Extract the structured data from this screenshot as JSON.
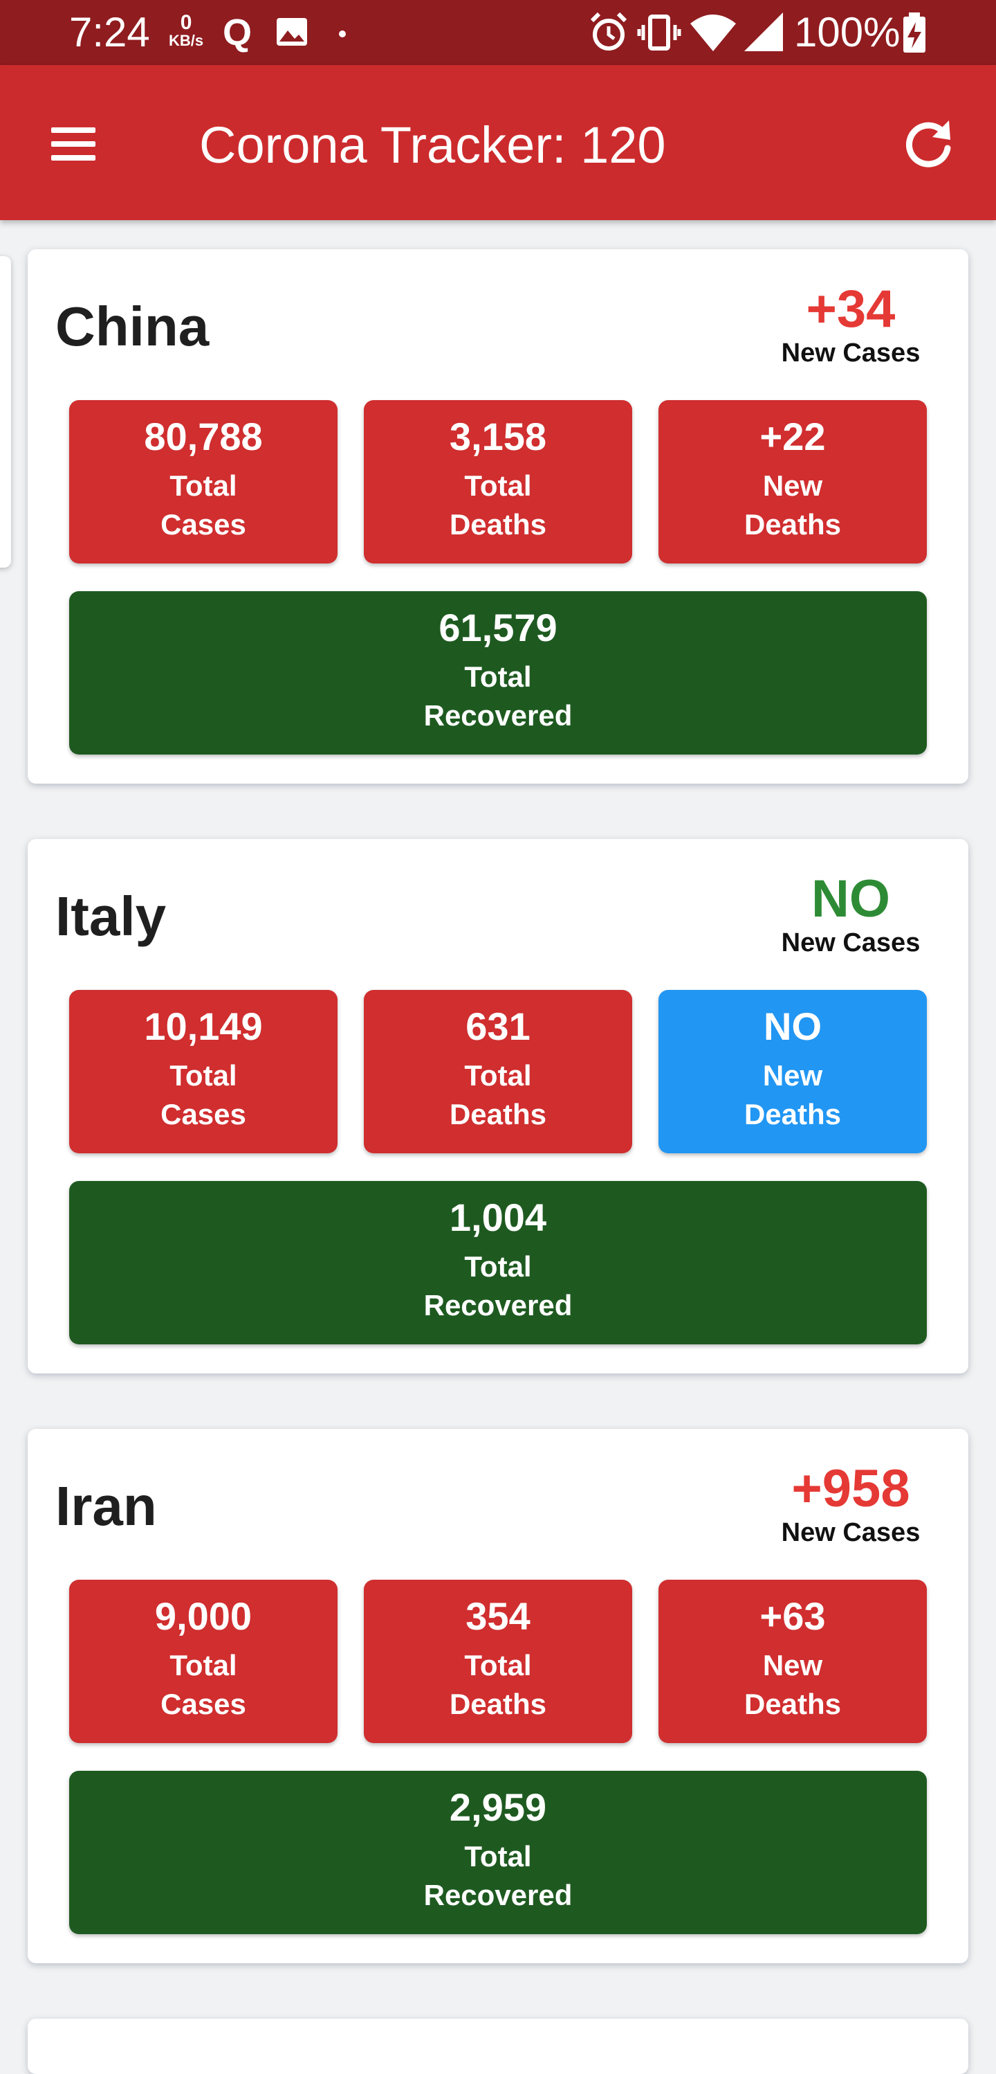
{
  "status_bar": {
    "time": "7:24",
    "net_speed_value": "0",
    "net_speed_unit": "KB/s",
    "q_icon": "Q",
    "battery_percent": "100%",
    "icons": [
      "image-icon",
      "dot-icon",
      "alarm-icon",
      "vibrate-icon",
      "wifi-icon",
      "signal-icon",
      "battery-charging-icon"
    ]
  },
  "app_bar": {
    "title": "Corona Tracker: 120",
    "menu_icon": "hamburger-menu-icon",
    "refresh_icon": "refresh-icon",
    "color": "#cc2b2d"
  },
  "colors": {
    "increase": "#e53935",
    "no_change": "#2e8b35",
    "stat_red": "#d02e2f",
    "stat_blue": "#2196f3",
    "stat_green": "#1e5a20"
  },
  "countries": [
    {
      "name": "China",
      "new_cases": "+34",
      "new_cases_label": "New Cases",
      "total_cases": "80,788",
      "total_cases_label": "Total\nCases",
      "total_deaths": "3,158",
      "total_deaths_label": "Total\nDeaths",
      "new_deaths": "+22",
      "new_deaths_label": "New\nDeaths",
      "total_recovered": "61,579",
      "total_recovered_label": "Total\nRecovered"
    },
    {
      "name": "Italy",
      "new_cases": "NO",
      "new_cases_label": "New Cases",
      "total_cases": "10,149",
      "total_cases_label": "Total\nCases",
      "total_deaths": "631",
      "total_deaths_label": "Total\nDeaths",
      "new_deaths": "NO",
      "new_deaths_label": "New\nDeaths",
      "total_recovered": "1,004",
      "total_recovered_label": "Total\nRecovered"
    },
    {
      "name": "Iran",
      "new_cases": "+958",
      "new_cases_label": "New Cases",
      "total_cases": "9,000",
      "total_cases_label": "Total\nCases",
      "total_deaths": "354",
      "total_deaths_label": "Total\nDeaths",
      "new_deaths": "+63",
      "new_deaths_label": "New\nDeaths",
      "total_recovered": "2,959",
      "total_recovered_label": "Total\nRecovered"
    }
  ]
}
